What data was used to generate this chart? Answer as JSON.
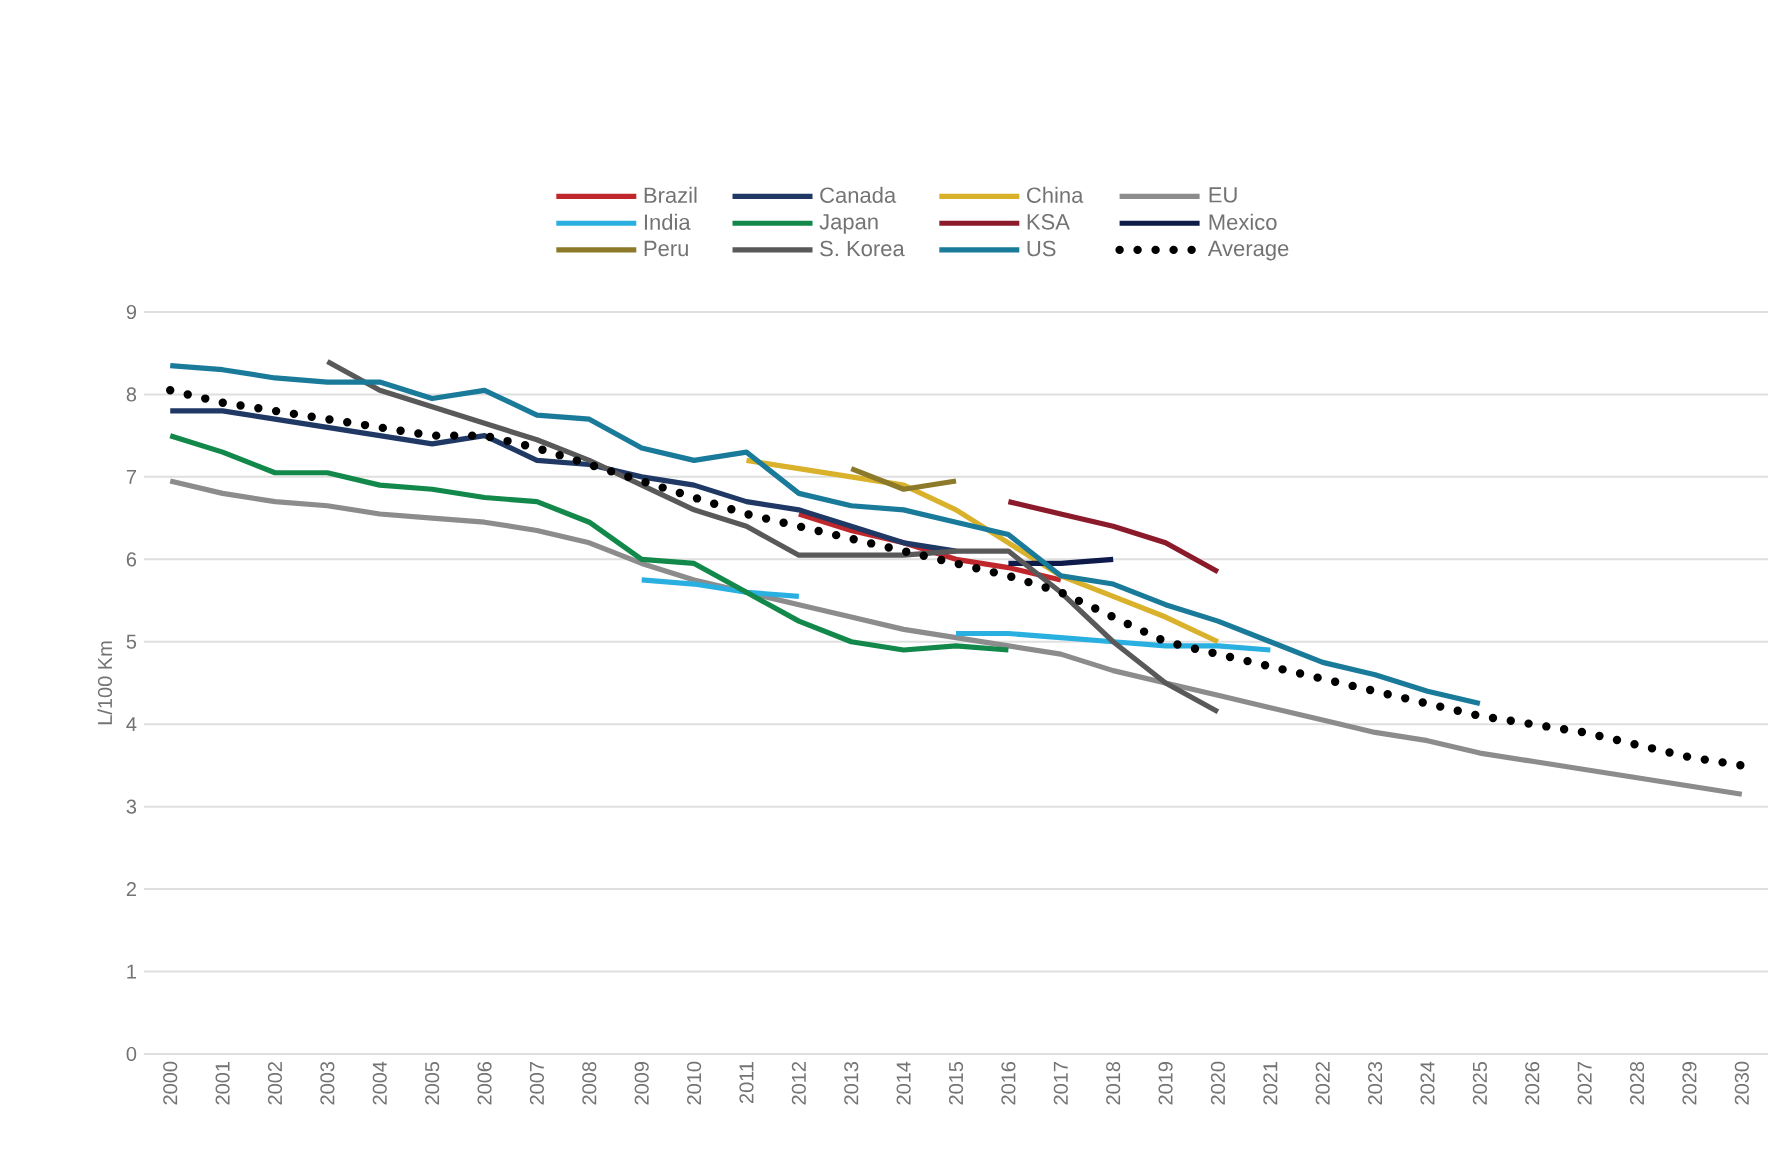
{
  "chart_data": {
    "type": "line",
    "ylabel": "L/100 Km",
    "categories": [
      "2000",
      "2001",
      "2002",
      "2003",
      "2004",
      "2005",
      "2006",
      "2007",
      "2008",
      "2009",
      "2010",
      "2011",
      "2012",
      "2013",
      "2014",
      "2015",
      "2016",
      "2017",
      "2018",
      "2019",
      "2020",
      "2021",
      "2022",
      "2023",
      "2024",
      "2025",
      "2026",
      "2027",
      "2028",
      "2029",
      "2030"
    ],
    "ylim": [
      0,
      9
    ],
    "yticks": [
      0,
      1,
      2,
      3,
      4,
      5,
      6,
      7,
      8,
      9
    ],
    "grid": "y",
    "legend": "top",
    "marker": "none",
    "line_style": "solid",
    "series": [
      {
        "name": "Brazil",
        "color": "#c0272d",
        "values": [
          null,
          null,
          null,
          null,
          null,
          null,
          null,
          null,
          null,
          null,
          null,
          null,
          6.55,
          6.35,
          6.2,
          6.0,
          5.9,
          5.75,
          null,
          null,
          null,
          null,
          null,
          null,
          null,
          null,
          null,
          null,
          null,
          null,
          null
        ]
      },
      {
        "name": "Canada",
        "color": "#1f3864",
        "values": [
          7.8,
          7.8,
          7.7,
          7.6,
          7.5,
          7.4,
          7.5,
          7.2,
          7.15,
          7.0,
          6.9,
          6.7,
          6.6,
          6.4,
          6.2,
          6.1,
          null,
          null,
          null,
          null,
          null,
          null,
          null,
          null,
          null,
          null,
          null,
          null,
          null,
          null,
          null
        ]
      },
      {
        "name": "China",
        "color": "#d9b12a",
        "values": [
          null,
          null,
          null,
          null,
          null,
          null,
          null,
          null,
          null,
          null,
          null,
          7.2,
          7.1,
          7.0,
          6.9,
          6.6,
          6.2,
          5.8,
          5.55,
          5.3,
          5.0,
          null,
          null,
          null,
          null,
          null,
          null,
          null,
          null,
          null,
          null
        ]
      },
      {
        "name": "EU",
        "color": "#8c8c8c",
        "values": [
          6.95,
          6.8,
          6.7,
          6.65,
          6.55,
          6.5,
          6.45,
          6.35,
          6.2,
          5.95,
          5.75,
          5.6,
          5.45,
          5.3,
          5.15,
          5.05,
          4.95,
          4.85,
          4.65,
          4.5,
          4.35,
          4.2,
          4.05,
          3.9,
          3.8,
          3.65,
          3.55,
          3.45,
          3.35,
          3.25,
          3.15
        ]
      },
      {
        "name": "India",
        "color": "#29b0e0",
        "values": [
          null,
          null,
          null,
          null,
          null,
          null,
          null,
          null,
          null,
          5.75,
          5.7,
          5.6,
          5.55,
          null,
          null,
          5.1,
          5.1,
          5.05,
          5.0,
          4.95,
          4.95,
          4.9,
          null,
          null,
          null,
          null,
          null,
          null,
          null,
          null,
          null
        ]
      },
      {
        "name": "Japan",
        "color": "#12884a",
        "values": [
          7.5,
          7.3,
          7.05,
          7.05,
          6.9,
          6.85,
          6.75,
          6.7,
          6.45,
          6.0,
          5.95,
          5.6,
          5.25,
          5.0,
          4.9,
          4.95,
          4.9,
          null,
          null,
          null,
          null,
          null,
          null,
          null,
          null,
          null,
          null,
          null,
          null,
          null,
          null
        ]
      },
      {
        "name": "KSA",
        "color": "#8b1a2a",
        "values": [
          null,
          null,
          null,
          null,
          null,
          null,
          null,
          null,
          null,
          null,
          null,
          null,
          null,
          null,
          null,
          null,
          6.7,
          6.55,
          6.4,
          6.2,
          5.85,
          null,
          null,
          null,
          null,
          null,
          null,
          null,
          null,
          null,
          null
        ]
      },
      {
        "name": "Mexico",
        "color": "#0d1a4a",
        "values": [
          null,
          null,
          null,
          null,
          null,
          null,
          null,
          null,
          null,
          null,
          null,
          null,
          null,
          null,
          null,
          null,
          5.95,
          5.95,
          6.0,
          null,
          null,
          null,
          null,
          null,
          null,
          null,
          null,
          null,
          null,
          null,
          null
        ]
      },
      {
        "name": "Peru",
        "color": "#8c7a2a",
        "values": [
          null,
          null,
          null,
          null,
          null,
          null,
          null,
          null,
          null,
          null,
          null,
          null,
          null,
          7.1,
          6.85,
          6.95,
          null,
          null,
          null,
          null,
          null,
          null,
          null,
          null,
          null,
          null,
          null,
          null,
          null,
          null,
          null
        ]
      },
      {
        "name": "S. Korea",
        "color": "#595959",
        "values": [
          null,
          null,
          null,
          8.4,
          8.05,
          7.85,
          7.65,
          7.45,
          7.2,
          6.9,
          6.6,
          6.4,
          6.05,
          6.05,
          6.05,
          6.1,
          6.1,
          5.6,
          5.0,
          4.5,
          4.15,
          null,
          null,
          null,
          null,
          null,
          null,
          null,
          null,
          null,
          null
        ]
      },
      {
        "name": "US",
        "color": "#1a7a9a",
        "values": [
          8.35,
          8.3,
          8.2,
          8.15,
          8.15,
          7.95,
          8.05,
          7.75,
          7.7,
          7.35,
          7.2,
          7.3,
          6.8,
          6.65,
          6.6,
          6.45,
          6.3,
          5.8,
          5.7,
          5.45,
          5.25,
          5.0,
          4.75,
          4.6,
          4.4,
          4.25,
          null,
          null,
          null,
          null,
          null
        ]
      },
      {
        "name": "Average",
        "color": "#000000",
        "line_style": "dotted",
        "values": [
          8.05,
          7.9,
          7.8,
          7.7,
          7.6,
          7.5,
          7.5,
          7.35,
          7.15,
          6.95,
          6.75,
          6.55,
          6.4,
          6.25,
          6.1,
          5.95,
          5.8,
          5.6,
          5.3,
          5.0,
          4.85,
          4.7,
          4.55,
          4.4,
          4.25,
          4.1,
          4.0,
          3.9,
          3.75,
          3.6,
          3.5
        ]
      }
    ]
  }
}
